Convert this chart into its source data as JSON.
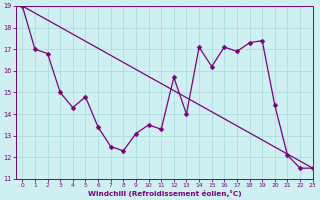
{
  "xlabel": "Windchill (Refroidissement éolien,°C)",
  "x_hours": [
    0,
    1,
    2,
    3,
    4,
    5,
    6,
    7,
    8,
    9,
    10,
    11,
    12,
    13,
    14,
    15,
    16,
    17,
    18,
    19,
    20,
    21,
    22,
    23
  ],
  "y_actual": [
    19,
    17,
    16.8,
    15,
    14.3,
    14.8,
    13.4,
    12.5,
    12.3,
    13.1,
    13.5,
    13.3,
    15.7,
    14.0,
    17.1,
    16.2,
    17.1,
    16.9,
    17.3,
    17.4,
    14.4,
    12.1,
    11.5,
    11.5
  ],
  "trend_x": [
    0,
    23
  ],
  "trend_y": [
    19,
    11.5
  ],
  "line_color": "#7b0080",
  "bg_color": "#cff0f0",
  "grid_color": "#aadddd",
  "ylim": [
    11,
    19
  ],
  "xlim": [
    -0.5,
    23
  ],
  "yticks": [
    11,
    12,
    13,
    14,
    15,
    16,
    17,
    18,
    19
  ],
  "xticks": [
    0,
    1,
    2,
    3,
    4,
    5,
    6,
    7,
    8,
    9,
    10,
    11,
    12,
    13,
    14,
    15,
    16,
    17,
    18,
    19,
    20,
    21,
    22,
    23
  ],
  "marker": "D",
  "markersize": 2.5,
  "linewidth": 0.9
}
